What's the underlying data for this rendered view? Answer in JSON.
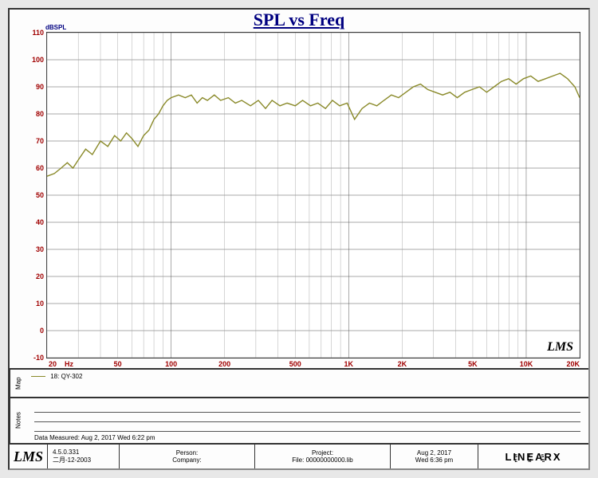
{
  "chart": {
    "type": "line",
    "title": "SPL vs Freq",
    "title_color": "#000080",
    "title_fontsize": 22,
    "background_color": "#ffffff",
    "panel_background": "#fdfdfd",
    "outer_background": "#e8e8e8",
    "grid_color": "#555555",
    "grid_minor_color": "#999999",
    "axis_label_color": "#a00000",
    "axis_label_fontsize": 9,
    "xaxis": {
      "scale": "log",
      "min": 20,
      "max": 20000,
      "unit": "Hz",
      "ticks": [
        20,
        50,
        100,
        200,
        500,
        1000,
        2000,
        5000,
        10000,
        20000
      ],
      "tick_labels": [
        "20",
        "50",
        "100",
        "200",
        "500",
        "1K",
        "2K",
        "5K",
        "10K",
        "20K"
      ]
    },
    "yaxis": {
      "scale": "linear",
      "min": -10,
      "max": 110,
      "unit": "dBSPL",
      "ticks": [
        -10,
        0,
        10,
        20,
        30,
        40,
        50,
        60,
        70,
        80,
        90,
        100,
        110
      ]
    },
    "series": [
      {
        "name": "18: QY-302",
        "color": "#8a8a2a",
        "line_width": 1.4,
        "data": [
          [
            20,
            57
          ],
          [
            22,
            58
          ],
          [
            24,
            60
          ],
          [
            26,
            62
          ],
          [
            28,
            60
          ],
          [
            30,
            63
          ],
          [
            33,
            67
          ],
          [
            36,
            65
          ],
          [
            40,
            70
          ],
          [
            44,
            68
          ],
          [
            48,
            72
          ],
          [
            52,
            70
          ],
          [
            56,
            73
          ],
          [
            60,
            71
          ],
          [
            65,
            68
          ],
          [
            70,
            72
          ],
          [
            75,
            74
          ],
          [
            80,
            78
          ],
          [
            85,
            80
          ],
          [
            90,
            83
          ],
          [
            95,
            85
          ],
          [
            100,
            86
          ],
          [
            110,
            87
          ],
          [
            120,
            86
          ],
          [
            130,
            87
          ],
          [
            140,
            84
          ],
          [
            150,
            86
          ],
          [
            160,
            85
          ],
          [
            175,
            87
          ],
          [
            190,
            85
          ],
          [
            210,
            86
          ],
          [
            230,
            84
          ],
          [
            250,
            85
          ],
          [
            280,
            83
          ],
          [
            310,
            85
          ],
          [
            340,
            82
          ],
          [
            370,
            85
          ],
          [
            410,
            83
          ],
          [
            450,
            84
          ],
          [
            500,
            83
          ],
          [
            550,
            85
          ],
          [
            610,
            83
          ],
          [
            670,
            84
          ],
          [
            740,
            82
          ],
          [
            810,
            85
          ],
          [
            890,
            83
          ],
          [
            980,
            84
          ],
          [
            1080,
            78
          ],
          [
            1190,
            82
          ],
          [
            1310,
            84
          ],
          [
            1440,
            83
          ],
          [
            1580,
            85
          ],
          [
            1740,
            87
          ],
          [
            1910,
            86
          ],
          [
            2100,
            88
          ],
          [
            2310,
            90
          ],
          [
            2540,
            91
          ],
          [
            2790,
            89
          ],
          [
            3070,
            88
          ],
          [
            3380,
            87
          ],
          [
            3720,
            88
          ],
          [
            4090,
            86
          ],
          [
            4500,
            88
          ],
          [
            4950,
            89
          ],
          [
            5450,
            90
          ],
          [
            5990,
            88
          ],
          [
            6590,
            90
          ],
          [
            7250,
            92
          ],
          [
            7970,
            93
          ],
          [
            8770,
            91
          ],
          [
            9650,
            93
          ],
          [
            10610,
            94
          ],
          [
            11670,
            92
          ],
          [
            12840,
            93
          ],
          [
            14120,
            94
          ],
          [
            15530,
            95
          ],
          [
            17090,
            93
          ],
          [
            18800,
            90
          ],
          [
            20000,
            86
          ]
        ]
      }
    ],
    "watermark": "LMS"
  },
  "legend": {
    "tab": "Map",
    "items": [
      {
        "label": "18: QY-302",
        "color": "#8a8a2a"
      }
    ]
  },
  "notes": {
    "tab": "Notes",
    "measured": "Data Measured: Aug  2, 2017  Wed  6:22 pm"
  },
  "footer": {
    "app": "LMS",
    "version": "4.5.0.331",
    "version_date": "二月-12-2003",
    "person_label": "Person:",
    "company_label": "Company:",
    "project_label": "Project:",
    "file_label": "File: 00000000000.lib",
    "date": "Aug  2, 2017",
    "time": "Wed  6:36 pm",
    "brand": "LINEARX",
    "brand_sub": "S Y S T E M S"
  }
}
